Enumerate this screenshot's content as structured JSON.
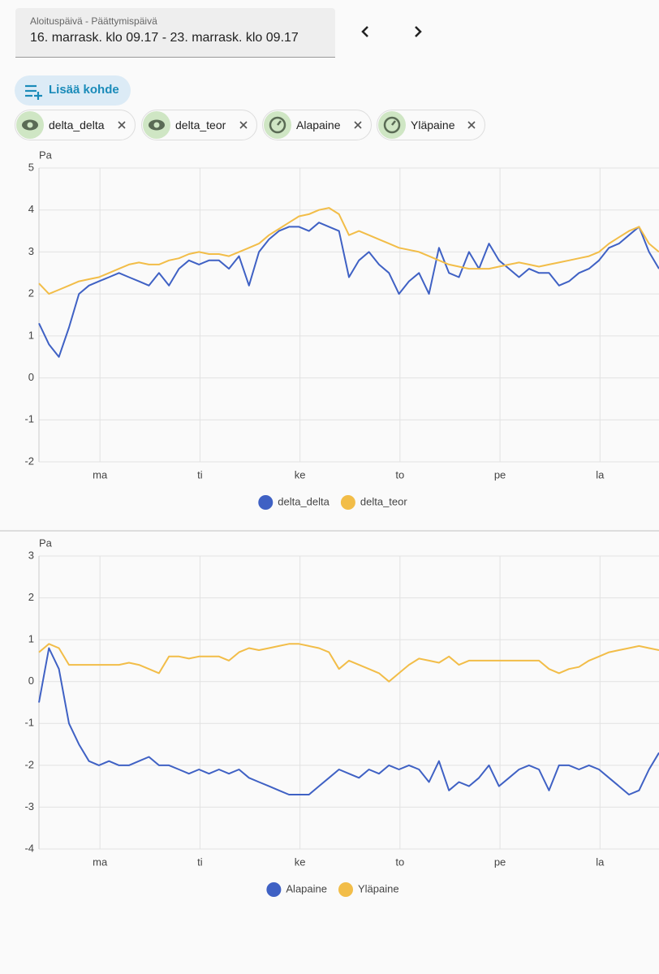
{
  "header": {
    "date_label": "Aloituspäivä - Päättymispäivä",
    "date_range": "16. marrask. klo 09.17 - 23. marrask. klo 09.17"
  },
  "add_button": "Lisää kohde",
  "targets": [
    "delta_delta",
    "delta_teor",
    "Alapaine",
    "Yläpaine"
  ],
  "chart_data": [
    {
      "type": "line",
      "y_label": "Pa",
      "x": [
        0,
        0.1,
        0.2,
        0.3,
        0.4,
        0.5,
        0.6,
        0.7,
        0.8,
        0.9,
        1,
        1.1,
        1.2,
        1.3,
        1.4,
        1.5,
        1.6,
        1.7,
        1.8,
        1.9,
        2,
        2.1,
        2.2,
        2.3,
        2.4,
        2.5,
        2.6,
        2.7,
        2.8,
        2.9,
        3,
        3.1,
        3.2,
        3.3,
        3.4,
        3.5,
        3.6,
        3.7,
        3.8,
        3.9,
        4,
        4.1,
        4.2,
        4.3,
        4.4,
        4.5,
        4.6,
        4.7,
        4.8,
        4.9,
        5,
        5.1,
        5.2,
        5.3,
        5.4,
        5.5,
        5.6,
        5.7,
        5.8,
        5.9,
        6,
        6.1,
        6.2
      ],
      "xlim": [
        0,
        6.2
      ],
      "xticks": [
        {
          "value": 0.61,
          "label": "ma"
        },
        {
          "value": 1.61,
          "label": "ti"
        },
        {
          "value": 2.61,
          "label": "ke"
        },
        {
          "value": 3.61,
          "label": "to"
        },
        {
          "value": 4.61,
          "label": "pe"
        },
        {
          "value": 5.61,
          "label": "la"
        }
      ],
      "ylim": [
        -2,
        5
      ],
      "yticks": [
        -2,
        -1,
        0,
        1,
        2,
        3,
        4,
        5
      ],
      "grid": true,
      "series": [
        {
          "name": "delta_delta",
          "color": "#3f61c4",
          "values": [
            1.3,
            0.8,
            0.5,
            1.2,
            2.0,
            2.2,
            2.3,
            2.4,
            2.5,
            2.4,
            2.3,
            2.2,
            2.5,
            2.2,
            2.6,
            2.8,
            2.7,
            2.8,
            2.8,
            2.6,
            2.9,
            2.2,
            3.0,
            3.3,
            3.5,
            3.6,
            3.6,
            3.5,
            3.7,
            3.6,
            3.5,
            2.4,
            2.8,
            3.0,
            2.7,
            2.5,
            2.0,
            2.3,
            2.5,
            2.0,
            3.1,
            2.5,
            2.4,
            3.0,
            2.6,
            3.2,
            2.8,
            2.6,
            2.4,
            2.6,
            2.5,
            2.5,
            2.2,
            2.3,
            2.5,
            2.6,
            2.8,
            3.1,
            3.2,
            3.4,
            3.6,
            3.0,
            2.6
          ]
        },
        {
          "name": "delta_teor",
          "color": "#f2bd48",
          "values": [
            2.25,
            2.0,
            2.1,
            2.2,
            2.3,
            2.35,
            2.4,
            2.5,
            2.6,
            2.7,
            2.75,
            2.7,
            2.7,
            2.8,
            2.85,
            2.95,
            3.0,
            2.95,
            2.95,
            2.9,
            3.0,
            3.1,
            3.2,
            3.4,
            3.55,
            3.7,
            3.85,
            3.9,
            4.0,
            4.05,
            3.9,
            3.4,
            3.5,
            3.4,
            3.3,
            3.2,
            3.1,
            3.05,
            3.0,
            2.9,
            2.8,
            2.7,
            2.65,
            2.6,
            2.6,
            2.6,
            2.65,
            2.7,
            2.75,
            2.7,
            2.65,
            2.7,
            2.75,
            2.8,
            2.85,
            2.9,
            3.0,
            3.2,
            3.35,
            3.5,
            3.6,
            3.2,
            3.0
          ]
        }
      ]
    },
    {
      "type": "line",
      "y_label": "Pa",
      "x": [
        0,
        0.1,
        0.2,
        0.3,
        0.4,
        0.5,
        0.6,
        0.7,
        0.8,
        0.9,
        1,
        1.1,
        1.2,
        1.3,
        1.4,
        1.5,
        1.6,
        1.7,
        1.8,
        1.9,
        2,
        2.1,
        2.2,
        2.3,
        2.4,
        2.5,
        2.6,
        2.7,
        2.8,
        2.9,
        3,
        3.1,
        3.2,
        3.3,
        3.4,
        3.5,
        3.6,
        3.7,
        3.8,
        3.9,
        4,
        4.1,
        4.2,
        4.3,
        4.4,
        4.5,
        4.6,
        4.7,
        4.8,
        4.9,
        5,
        5.1,
        5.2,
        5.3,
        5.4,
        5.5,
        5.6,
        5.7,
        5.8,
        5.9,
        6,
        6.1,
        6.2
      ],
      "xlim": [
        0,
        6.2
      ],
      "xticks": [
        {
          "value": 0.61,
          "label": "ma"
        },
        {
          "value": 1.61,
          "label": "ti"
        },
        {
          "value": 2.61,
          "label": "ke"
        },
        {
          "value": 3.61,
          "label": "to"
        },
        {
          "value": 4.61,
          "label": "pe"
        },
        {
          "value": 5.61,
          "label": "la"
        }
      ],
      "ylim": [
        -4,
        3
      ],
      "yticks": [
        -4,
        -3,
        -2,
        -1,
        0,
        1,
        2,
        3
      ],
      "grid": true,
      "series": [
        {
          "name": "Alapaine",
          "color": "#3f61c4",
          "values": [
            -0.5,
            0.8,
            0.3,
            -1.0,
            -1.5,
            -1.9,
            -2.0,
            -1.9,
            -2.0,
            -2.0,
            -1.9,
            -1.8,
            -2.0,
            -2.0,
            -2.1,
            -2.2,
            -2.1,
            -2.2,
            -2.1,
            -2.2,
            -2.1,
            -2.3,
            -2.4,
            -2.5,
            -2.6,
            -2.7,
            -2.7,
            -2.7,
            -2.5,
            -2.3,
            -2.1,
            -2.2,
            -2.3,
            -2.1,
            -2.2,
            -2.0,
            -2.1,
            -2.0,
            -2.1,
            -2.4,
            -1.9,
            -2.6,
            -2.4,
            -2.5,
            -2.3,
            -2.0,
            -2.5,
            -2.3,
            -2.1,
            -2.0,
            -2.1,
            -2.6,
            -2.0,
            -2.0,
            -2.1,
            -2.0,
            -2.1,
            -2.3,
            -2.5,
            -2.7,
            -2.6,
            -2.1,
            -1.7
          ]
        },
        {
          "name": "Yläpaine",
          "color": "#f2bd48",
          "values": [
            0.7,
            0.9,
            0.8,
            0.4,
            0.4,
            0.4,
            0.4,
            0.4,
            0.4,
            0.45,
            0.4,
            0.3,
            0.2,
            0.6,
            0.6,
            0.55,
            0.6,
            0.6,
            0.6,
            0.5,
            0.7,
            0.8,
            0.75,
            0.8,
            0.85,
            0.9,
            0.9,
            0.85,
            0.8,
            0.7,
            0.3,
            0.5,
            0.4,
            0.3,
            0.2,
            0.0,
            0.2,
            0.4,
            0.55,
            0.5,
            0.45,
            0.6,
            0.4,
            0.5,
            0.5,
            0.5,
            0.5,
            0.5,
            0.5,
            0.5,
            0.5,
            0.3,
            0.2,
            0.3,
            0.35,
            0.5,
            0.6,
            0.7,
            0.75,
            0.8,
            0.85,
            0.8,
            0.75
          ]
        }
      ]
    }
  ]
}
